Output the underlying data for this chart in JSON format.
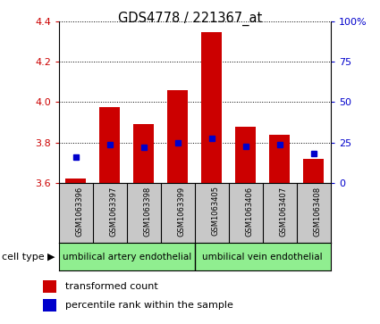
{
  "title": "GDS4778 / 221367_at",
  "samples": [
    "GSM1063396",
    "GSM1063397",
    "GSM1063398",
    "GSM1063399",
    "GSM1063405",
    "GSM1063406",
    "GSM1063407",
    "GSM1063408"
  ],
  "red_values": [
    3.623,
    3.975,
    3.89,
    4.06,
    4.345,
    3.88,
    3.84,
    3.72
  ],
  "blue_values": [
    3.73,
    3.79,
    3.775,
    3.8,
    3.82,
    3.78,
    3.79,
    3.745
  ],
  "ylim_left": [
    3.6,
    4.4
  ],
  "ylim_right": [
    0,
    100
  ],
  "yticks_left": [
    3.6,
    3.8,
    4.0,
    4.2,
    4.4
  ],
  "yticks_right": [
    0,
    25,
    50,
    75,
    100
  ],
  "bar_bottom": 3.6,
  "bar_color": "#cc0000",
  "dot_color": "#0000cc",
  "bar_width": 0.6,
  "cell_types": [
    "umbilical artery endothelial",
    "umbilical vein endothelial"
  ],
  "cell_type_samples": [
    4,
    4
  ],
  "background_plot": "#ffffff",
  "tick_area_bg": "#c8c8c8",
  "cell_bg": "#90ee90",
  "left_tick_color": "#cc0000",
  "right_tick_color": "#0000cc",
  "legend_red_label": "transformed count",
  "legend_blue_label": "percentile rank within the sample",
  "right_ytick_labels": [
    "0",
    "25",
    "50",
    "75",
    "100%"
  ]
}
